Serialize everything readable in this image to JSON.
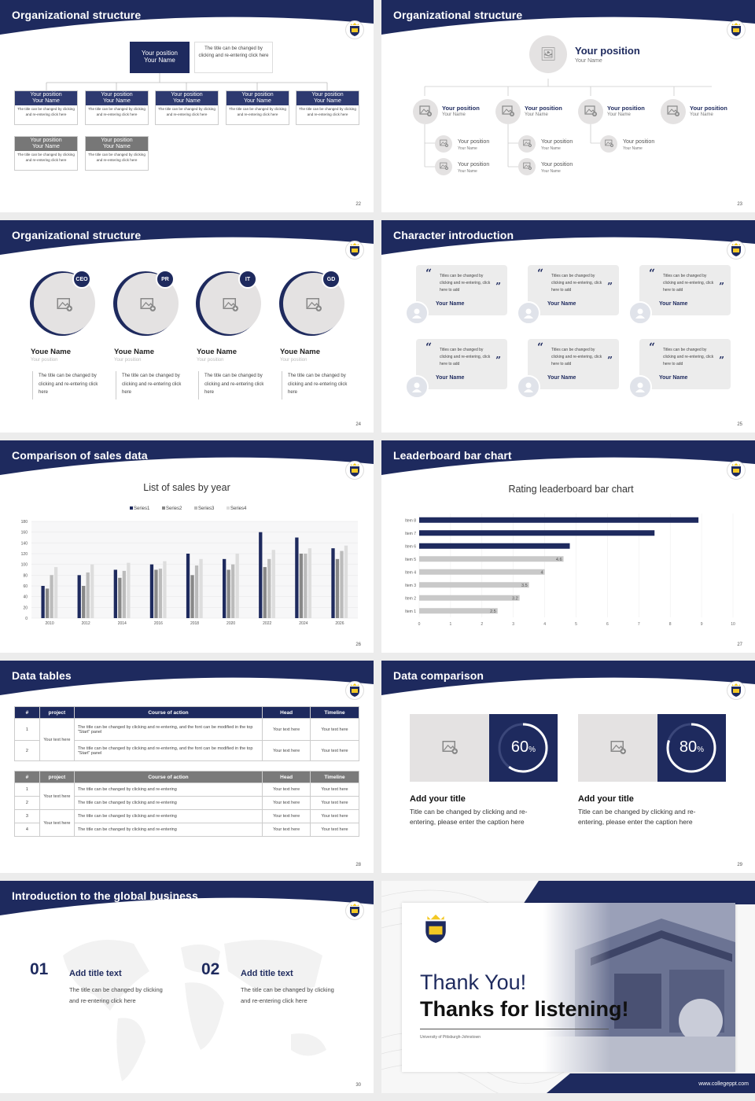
{
  "colors": {
    "navy": "#1e2a5e",
    "gray": "#777777",
    "light": "#e4e2e2",
    "bar_gray": "#c9c9c9"
  },
  "slides": {
    "s22": {
      "title": "Organizational structure",
      "page": "22",
      "top": {
        "title": "Your position",
        "name": "Your Name",
        "desc": "The title can be changed by clicking and re-entering click here"
      },
      "boxes": [
        {
          "title": "Your position",
          "name": "Your Name",
          "desc": "The title can be changed by clicking and re-entering click here"
        },
        {
          "title": "Your position",
          "name": "Your Name",
          "desc": "The title can be changed by clicking and re-entering click here"
        },
        {
          "title": "Your position",
          "name": "Your Name",
          "desc": "The title can be changed by clicking and re-entering click here"
        },
        {
          "title": "Your position",
          "name": "Your Name",
          "desc": "The title can be changed by clicking and re-entering click here"
        },
        {
          "title": "Your position",
          "name": "Your Name",
          "desc": "The title can be changed by clicking and re-entering click here"
        },
        {
          "title": "Your position",
          "name": "Your Name",
          "desc": "The title can be changed by clicking and re-entering click here"
        },
        {
          "title": "Your position",
          "name": "Your Name",
          "desc": "The title can be changed by clicking and re-entering click here"
        }
      ]
    },
    "s23": {
      "title": "Organizational structure",
      "page": "23",
      "top": {
        "title": "Your position",
        "name": "Your Name"
      },
      "items": [
        {
          "title": "Your position",
          "name": "Your Name"
        },
        {
          "title": "Your position",
          "name": "Your Name"
        },
        {
          "title": "Your position",
          "name": "Your Name"
        },
        {
          "title": "Your position",
          "name": "Your Name"
        },
        {
          "title": "Your position",
          "name": "Your Name"
        },
        {
          "title": "Your position",
          "name": "Your Name"
        },
        {
          "title": "Your position",
          "name": "Your Name"
        },
        {
          "title": "Your position",
          "name": "Your Name"
        },
        {
          "title": "Your position",
          "name": "Your Name"
        }
      ]
    },
    "s24": {
      "title": "Organizational structure",
      "page": "24",
      "people": [
        {
          "badge": "CEO",
          "name": "Youe Name",
          "pos": "Your position",
          "desc": "The title can be changed by clicking and re-entering click here"
        },
        {
          "badge": "PR",
          "name": "Youe Name",
          "pos": "Your position",
          "desc": "The title can be changed by clicking and re-entering click here"
        },
        {
          "badge": "IT",
          "name": "Youe Name",
          "pos": "Your position",
          "desc": "The title can be changed by clicking and re-entering click here"
        },
        {
          "badge": "GD",
          "name": "Youe Name",
          "pos": "Your position",
          "desc": "The title can be changed by clicking and re-entering click here"
        }
      ]
    },
    "s25": {
      "title": "Character introduction",
      "page": "25",
      "quotes": [
        {
          "text": "Titles can be changed by clicking and re-entering, click here to add",
          "name": "Your Name"
        },
        {
          "text": "Titles can be changed by clicking and re-entering, click here to add",
          "name": "Your Name"
        },
        {
          "text": "Titles can be changed by clicking and re-entering, click here to add",
          "name": "Your Name"
        },
        {
          "text": "Titles can be changed by clicking and re-entering, click here to add",
          "name": "Your Name"
        },
        {
          "text": "Titles can be changed by clicking and re-entering, click here to add",
          "name": "Your Name"
        },
        {
          "text": "Titles can be changed by clicking and re-entering, click here to add",
          "name": "Your Name"
        }
      ]
    },
    "s26": {
      "title": "Comparison of sales data",
      "page": "26"
    },
    "s27": {
      "title": "Leaderboard bar chart",
      "page": "27"
    },
    "s28": {
      "title": "Data tables",
      "page": "28",
      "t1": {
        "headers": [
          "#",
          "project",
          "Course of action",
          "Head",
          "Timeline"
        ],
        "merged": "Your text here",
        "rows": [
          {
            "n": "1",
            "course": "The title can be changed by clicking and re-entering, and the font can be modified in the top \"Start\" panel",
            "head": "Your text here",
            "time": "Your text here"
          },
          {
            "n": "2",
            "course": "The title can be changed by clicking and re-entering, and the font can be modified in the top \"Start\" panel",
            "head": "Your text here",
            "time": "Your text here"
          }
        ]
      },
      "t2": {
        "headers": [
          "#",
          "project",
          "Course of action",
          "Head",
          "Timeline"
        ],
        "merged": [
          "Your text here",
          "Your text here"
        ],
        "rows": [
          {
            "n": "1",
            "course": "The title can be changed by clicking and re-entering",
            "head": "Your text here",
            "time": "Your text here"
          },
          {
            "n": "2",
            "course": "The title can be changed by clicking and re-entering",
            "head": "Your text here",
            "time": "Your text here"
          },
          {
            "n": "3",
            "course": "The title can be changed by clicking and re-entering",
            "head": "Your text here",
            "time": "Your text here"
          },
          {
            "n": "4",
            "course": "The title can be changed by clicking and re-entering",
            "head": "Your text here",
            "time": "Your text here"
          }
        ]
      }
    },
    "s29": {
      "title": "Data comparison",
      "page": "29",
      "cards": [
        {
          "percent": "60",
          "unit": "%",
          "value": 0.6,
          "title": "Add your title",
          "desc": "Title can be changed by clicking and re-entering, please enter the caption here"
        },
        {
          "percent": "80",
          "unit": "%",
          "value": 0.8,
          "title": "Add your title",
          "desc": "Title can be changed by clicking and re-entering, please enter the caption here"
        }
      ]
    },
    "s30": {
      "title": "Introduction to the global business",
      "page": "30",
      "items": [
        {
          "num": "01",
          "title": "Add title text",
          "desc": "The title can be changed by clicking and re-entering click here"
        },
        {
          "num": "02",
          "title": "Add title text",
          "desc": "The title can be changed by clicking and re-entering click here"
        }
      ]
    },
    "s31": {
      "thanks": "Thank You!",
      "listening": "Thanks for listening!",
      "university": "University of Pittsburgh-Johnstown",
      "site": "www.collegeppt.com"
    }
  },
  "chart_data": [
    {
      "type": "bar",
      "title": "List of sales by year",
      "categories": [
        "2010",
        "2012",
        "2014",
        "2016",
        "2018",
        "2020",
        "2022",
        "2024",
        "2026"
      ],
      "series": [
        {
          "name": "Series1",
          "color": "#1e2a5e",
          "values": [
            60,
            80,
            90,
            100,
            120,
            110,
            160,
            150,
            130
          ]
        },
        {
          "name": "Series2",
          "color": "#888888",
          "values": [
            55,
            60,
            75,
            90,
            80,
            90,
            95,
            120,
            110
          ]
        },
        {
          "name": "Series3",
          "color": "#bbbbbb",
          "values": [
            80,
            85,
            88,
            92,
            98,
            100,
            110,
            120,
            125
          ]
        },
        {
          "name": "Series4",
          "color": "#dddddd",
          "values": [
            95,
            100,
            103,
            106,
            110,
            120,
            127,
            130,
            135
          ]
        }
      ],
      "ylim": [
        0,
        180
      ],
      "yticks": [
        0,
        20,
        40,
        60,
        80,
        100,
        120,
        140,
        160,
        180
      ],
      "legend": "top"
    },
    {
      "type": "bar",
      "orientation": "horizontal",
      "title": "Rating leaderboard bar chart",
      "categories": [
        "Item 1",
        "Item 2",
        "Item 3",
        "Item 4",
        "Item 5",
        "Item 6",
        "Item 7",
        "Item 8"
      ],
      "values": [
        2.5,
        3.2,
        3.5,
        4,
        4.6,
        4.8,
        7.5,
        8.9
      ],
      "labels": [
        "2.5",
        "3.2",
        "3.5",
        "4",
        "4.6",
        "",
        "",
        ""
      ],
      "xlim": [
        0,
        10
      ],
      "xticks": [
        "0",
        "1",
        "2",
        "3",
        "4",
        "5",
        "6",
        "7",
        "8",
        "9",
        "10"
      ]
    }
  ]
}
